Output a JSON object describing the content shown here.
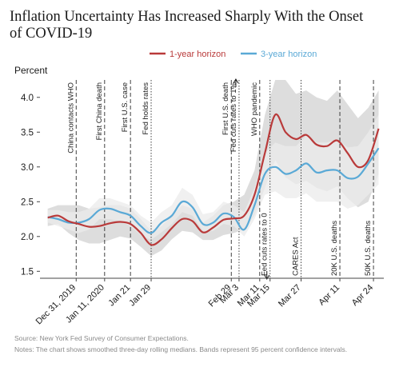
{
  "chart_data": {
    "type": "line",
    "title_lines": [
      "Inflation Uncertainty Has Increased Sharply With the Onset",
      "of COVID-19"
    ],
    "ylabel": "Percent",
    "ylim": [
      1.4,
      4.25
    ],
    "yticks": [
      1.5,
      2.0,
      2.5,
      3.0,
      3.5,
      4.0
    ],
    "ytick_labels": [
      "1.5",
      "2.0",
      "2.5",
      "3.0",
      "3.5",
      "4.0"
    ],
    "x_dates": [
      "2019-12-20",
      "2019-12-24",
      "2019-12-28",
      "2020-01-01",
      "2020-01-05",
      "2020-01-09",
      "2020-01-13",
      "2020-01-17",
      "2020-01-21",
      "2020-01-25",
      "2020-01-29",
      "2020-02-02",
      "2020-02-06",
      "2020-02-10",
      "2020-02-14",
      "2020-02-18",
      "2020-02-22",
      "2020-02-26",
      "2020-03-01",
      "2020-03-05",
      "2020-03-09",
      "2020-03-13",
      "2020-03-17",
      "2020-03-21",
      "2020-03-25",
      "2020-03-29",
      "2020-04-02",
      "2020-04-06",
      "2020-04-10",
      "2020-04-14",
      "2020-04-18",
      "2020-04-22",
      "2020-04-26"
    ],
    "x_tick_labels": [
      {
        "label": "Dec 31, 2019",
        "date": "2019-12-31"
      },
      {
        "label": "Jan 11, 2020",
        "date": "2020-01-11"
      },
      {
        "label": "Jan 21",
        "date": "2020-01-21"
      },
      {
        "label": "Jan 29",
        "date": "2020-01-29"
      },
      {
        "label": "Feb 29",
        "date": "2020-02-29"
      },
      {
        "label": "Mar 3",
        "date": "2020-03-03"
      },
      {
        "label": "Mar 11",
        "date": "2020-03-11"
      },
      {
        "label": "Mar 15",
        "date": "2020-03-15"
      },
      {
        "label": "Mar 27",
        "date": "2020-03-27"
      },
      {
        "label": "Apr 11",
        "date": "2020-04-11"
      },
      {
        "label": "Apr 24",
        "date": "2020-04-24"
      }
    ],
    "series": [
      {
        "name": "1-year horizon",
        "color": "#b93a3a",
        "values": [
          2.27,
          2.3,
          2.22,
          2.18,
          2.14,
          2.15,
          2.19,
          2.21,
          2.18,
          2.05,
          1.88,
          1.96,
          2.12,
          2.25,
          2.22,
          2.06,
          2.13,
          2.24,
          2.26,
          2.3,
          2.6,
          3.2,
          3.75,
          3.5,
          3.4,
          3.46,
          3.32,
          3.3,
          3.38,
          3.2,
          3.0,
          3.1,
          3.55
        ],
        "band_lower": [
          2.15,
          2.18,
          2.05,
          1.95,
          1.9,
          1.9,
          1.95,
          2.0,
          1.97,
          1.85,
          1.72,
          1.8,
          1.96,
          2.08,
          2.06,
          1.95,
          1.95,
          2.02,
          2.05,
          2.1,
          2.3,
          2.7,
          3.1,
          2.85,
          2.75,
          2.8,
          2.7,
          2.65,
          2.72,
          2.55,
          2.42,
          2.5,
          2.9
        ],
        "band_upper": [
          2.4,
          2.45,
          2.45,
          2.45,
          2.4,
          2.42,
          2.45,
          2.45,
          2.4,
          2.25,
          2.08,
          2.15,
          2.3,
          2.45,
          2.4,
          2.2,
          2.3,
          2.45,
          2.5,
          2.6,
          2.95,
          3.75,
          4.25,
          4.25,
          4.05,
          4.1,
          4.0,
          3.95,
          4.1,
          3.9,
          3.7,
          3.85,
          4.1
        ]
      },
      {
        "name": "3-year horizon",
        "color": "#5aa9d6",
        "values": [
          2.28,
          2.25,
          2.2,
          2.2,
          2.25,
          2.38,
          2.4,
          2.35,
          2.3,
          2.15,
          2.05,
          2.2,
          2.3,
          2.5,
          2.42,
          2.18,
          2.2,
          2.33,
          2.28,
          2.1,
          2.45,
          2.9,
          3.0,
          2.9,
          2.95,
          3.05,
          2.92,
          2.95,
          2.95,
          2.84,
          2.86,
          3.05,
          3.27
        ],
        "band_lower": [
          2.2,
          2.15,
          2.1,
          2.05,
          2.1,
          2.25,
          2.25,
          2.22,
          2.15,
          2.02,
          1.95,
          2.06,
          2.18,
          2.35,
          2.3,
          2.08,
          2.08,
          2.18,
          2.15,
          2.0,
          2.25,
          2.6,
          2.65,
          2.55,
          2.55,
          2.62,
          2.5,
          2.5,
          2.5,
          2.4,
          2.45,
          2.6,
          2.75
        ],
        "band_upper": [
          2.38,
          2.38,
          2.35,
          2.35,
          2.4,
          2.55,
          2.55,
          2.5,
          2.45,
          2.3,
          2.2,
          2.35,
          2.45,
          2.7,
          2.6,
          2.32,
          2.35,
          2.5,
          2.45,
          2.35,
          2.7,
          3.2,
          3.35,
          3.3,
          3.3,
          3.45,
          3.35,
          3.35,
          3.4,
          3.28,
          3.3,
          3.5,
          3.75
        ]
      }
    ],
    "events": [
      {
        "label": "China contacts WHO",
        "date": "2019-12-31",
        "style": "dashed",
        "label_pos": "top"
      },
      {
        "label": "First China death",
        "date": "2020-01-11",
        "style": "dashed",
        "label_pos": "top"
      },
      {
        "label": "First U.S. case",
        "date": "2020-01-21",
        "style": "dashed",
        "label_pos": "top"
      },
      {
        "label": "Fed holds rates",
        "date": "2020-01-29",
        "style": "dotted",
        "label_pos": "top"
      },
      {
        "label": "First U.S. death",
        "date": "2020-02-29",
        "style": "dashed",
        "label_pos": "top"
      },
      {
        "label": "Fed cuts rates to 1%",
        "date": "2020-03-03",
        "style": "dotted",
        "label_pos": "top",
        "arrow": "up"
      },
      {
        "label": "Fed cuts rates to 0",
        "date": "2020-03-15",
        "style": "dotted",
        "label_pos": "bottom",
        "arrow": "down"
      },
      {
        "label": "WHO pandemic",
        "date": "2020-03-11",
        "style": "dashed",
        "label_pos": "top"
      },
      {
        "label": "CARES Act",
        "date": "2020-03-27",
        "style": "dotted",
        "label_pos": "bottom"
      },
      {
        "label": "20K U.S. deaths",
        "date": "2020-04-11",
        "style": "dashed",
        "label_pos": "bottom"
      },
      {
        "label": "50K U.S. deaths",
        "date": "2020-04-24",
        "style": "dashed",
        "label_pos": "bottom"
      }
    ],
    "legend_position": "top-right",
    "grid": false
  },
  "footer": {
    "source": "Source: New York Fed Survey of Consumer Expectations.",
    "notes": "Notes: The chart shows smoothed three-day rolling medians. Bands represent 95 percent confidence intervals."
  }
}
